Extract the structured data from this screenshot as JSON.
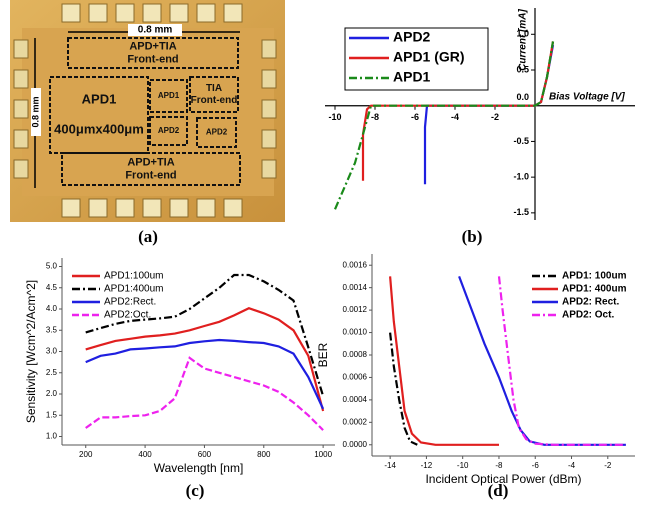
{
  "panel_labels": [
    "(a)",
    "(b)",
    "(c)",
    "(d)"
  ],
  "micrograph": {
    "dimension_labels": [
      "0.8 mm",
      "0.8 mm"
    ],
    "blocks": [
      [
        "APD+TIA",
        "Front-end"
      ],
      [
        "APD1",
        "400μmx400μm"
      ],
      [
        "APD1"
      ],
      [
        "APD2"
      ],
      [
        "TIA",
        "Front-end"
      ],
      [
        "APD2"
      ],
      [
        "APD+TIA",
        "Front-end"
      ]
    ]
  },
  "chart_data": [
    {
      "type": "line",
      "axes_at_zero": true,
      "x_label": "Bias Voltage [V]",
      "y_label": "Current [mA]",
      "xlim": [
        -10.5,
        5
      ],
      "ylim": [
        -1.6,
        1.2
      ],
      "xticks": [
        -10,
        -8,
        -6,
        -4,
        -2
      ],
      "yticks": [
        {
          "value": -1.5,
          "label": "-1.5"
        },
        {
          "value": -1,
          "label": "-1.0"
        },
        {
          "value": -0.5,
          "label": "-0.5"
        },
        {
          "value": 0,
          "label": "0.0"
        },
        {
          "value": 0.5,
          "label": "0.5"
        },
        {
          "value": 1,
          "label": "1.0"
        }
      ],
      "legend": "upper left",
      "series": [
        {
          "name": "APD2",
          "color": "#1f1fe0",
          "line_style": "solid",
          "x": [
            -5.5,
            -5.5,
            -5.4,
            0,
            0.3,
            0.6,
            0.9
          ],
          "values": [
            -1.1,
            -0.3,
            0,
            0,
            0.05,
            0.4,
            0.85
          ]
        },
        {
          "name": "APD1 (GR)",
          "color": "#e01f1f",
          "line_style": "solid",
          "x": [
            -8.6,
            -8.6,
            -8.4,
            -8.2,
            0,
            0.3,
            0.6,
            0.9
          ],
          "values": [
            -1.05,
            -0.4,
            -0.05,
            0,
            0,
            0.05,
            0.4,
            0.9
          ]
        },
        {
          "name": "APD1",
          "color": "#1a8a1a",
          "line_style": "dashdot",
          "x": [
            -10,
            -9,
            -8.4,
            -8.2,
            0,
            0.3,
            0.6,
            0.9
          ],
          "values": [
            -1.45,
            -0.8,
            -0.2,
            0,
            0,
            0.05,
            0.4,
            0.9
          ]
        }
      ]
    },
    {
      "type": "line",
      "axes_at_zero": false,
      "x_label": "Wavelength [nm]",
      "y_label": "Sensitivity [Wcm^2/Acm^2]",
      "xlim": [
        120,
        1040
      ],
      "ylim": [
        0.8,
        5.2
      ],
      "xticks": [
        200,
        400,
        600,
        800,
        1000
      ],
      "yticks": [
        {
          "value": 1,
          "label": "1.0"
        },
        1.5,
        {
          "value": 2,
          "label": "2.0"
        },
        2.5,
        {
          "value": 3,
          "label": "3.0"
        },
        3.5,
        {
          "value": 4,
          "label": "4.0"
        },
        4.5,
        {
          "value": 5,
          "label": "5.0"
        }
      ],
      "legend": "upper left",
      "x": [
        200,
        250,
        300,
        350,
        400,
        450,
        500,
        550,
        600,
        650,
        700,
        750,
        800,
        850,
        900,
        950,
        1000
      ],
      "series": [
        {
          "name": "APD1:100um",
          "color": "#e01f1f",
          "line_style": "solid",
          "values": [
            3.05,
            3.15,
            3.25,
            3.3,
            3.35,
            3.38,
            3.42,
            3.5,
            3.6,
            3.7,
            3.85,
            4.02,
            3.9,
            3.75,
            3.5,
            2.9,
            1.6
          ]
        },
        {
          "name": "APD1:400um",
          "color": "#000000",
          "line_style": "dashdot",
          "values": [
            3.45,
            3.55,
            3.65,
            3.72,
            3.75,
            3.78,
            3.82,
            4.0,
            4.25,
            4.5,
            4.8,
            4.8,
            4.65,
            4.45,
            4.2,
            3.1,
            1.95
          ]
        },
        {
          "name": "APD2:Rect.",
          "color": "#1f1fe0",
          "line_style": "solid",
          "values": [
            2.75,
            2.9,
            2.95,
            3.05,
            3.07,
            3.1,
            3.12,
            3.2,
            3.24,
            3.27,
            3.25,
            3.22,
            3.2,
            3.12,
            2.95,
            2.4,
            1.65
          ]
        },
        {
          "name": "APD2:Oct.",
          "color": "#ee22ee",
          "line_style": "dashed",
          "values": [
            1.2,
            1.45,
            1.45,
            1.48,
            1.5,
            1.6,
            1.9,
            2.85,
            2.6,
            2.5,
            2.4,
            2.3,
            2.2,
            2.05,
            1.8,
            1.5,
            1.15
          ]
        }
      ]
    },
    {
      "type": "line",
      "axes_at_zero": false,
      "x_label": "Incident Optical Power (dBm)",
      "y_label": "BER",
      "xlim": [
        -15,
        -0.5
      ],
      "ylim": [
        -0.0001,
        0.0017
      ],
      "xticks": [
        -14,
        -12,
        -10,
        -8,
        -6,
        -4,
        -2
      ],
      "yticks": [
        {
          "value": 0,
          "label": "0.0000"
        },
        0.0002,
        0.0004,
        0.0006,
        0.0008,
        {
          "value": 0.001,
          "label": "0.0010"
        },
        0.0012,
        0.0014,
        0.0016
      ],
      "legend": "upper right",
      "series": [
        {
          "name": "APD1: 100um",
          "color": "#000000",
          "line_style": "dashdot",
          "x": [
            -14,
            -13.8,
            -13.5,
            -13.2,
            -12.9,
            -12.5
          ],
          "values": [
            0.001,
            0.0007,
            0.0004,
            0.00015,
            3e-05,
            0
          ]
        },
        {
          "name": "APD1: 400um",
          "color": "#e01f1f",
          "line_style": "solid",
          "x": [
            -14,
            -13.8,
            -13.5,
            -13.2,
            -12.8,
            -12.3,
            -11.5,
            -10,
            -8
          ],
          "values": [
            0.0015,
            0.0011,
            0.0007,
            0.0003,
            0.0001,
            2e-05,
            0,
            0,
            0
          ]
        },
        {
          "name": "APD2: Rect.",
          "color": "#1f1fe0",
          "line_style": "solid",
          "x": [
            -10.2,
            -9.5,
            -8.8,
            -8,
            -7.3,
            -6.8,
            -6.3,
            -5.5,
            -4,
            -2,
            -1
          ],
          "values": [
            0.0015,
            0.0012,
            0.0009,
            0.0006,
            0.0003,
            0.00013,
            3e-05,
            0,
            0,
            0,
            0
          ]
        },
        {
          "name": "APD2: Oct.",
          "color": "#ee22ee",
          "line_style": "dashdot",
          "x": [
            -8,
            -7.8,
            -7.5,
            -7.2,
            -6.9,
            -6.5,
            -6,
            -5,
            -3,
            -1
          ],
          "values": [
            0.0015,
            0.0012,
            0.0008,
            0.0004,
            0.00015,
            5e-05,
            1e-05,
            0,
            0,
            0
          ]
        }
      ]
    }
  ]
}
